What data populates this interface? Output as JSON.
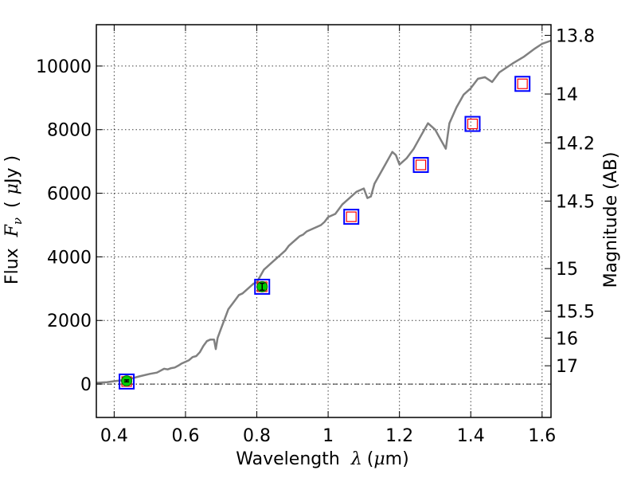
{
  "chart_data": {
    "type": "line",
    "xlabel": "Wavelength",
    "xlabel_symbol": "λ",
    "xlabel_unit_prefix": "(",
    "xlabel_unit_mu": "μ",
    "xlabel_unit_rest": "m)",
    "ylabel": "Flux",
    "ylabel_symbol": "F",
    "ylabel_subscript": "ν",
    "ylabel_unit_open": "(",
    "ylabel_unit_mu": "μ",
    "ylabel_unit_rest": "Jy )",
    "y2label": "Magnitude (AB)",
    "xlim": [
      0.35,
      1.625
    ],
    "ylim": [
      -1050,
      11300
    ],
    "x_ticks": [
      0.4,
      0.6,
      0.8,
      1.0,
      1.2,
      1.4,
      1.6
    ],
    "x_tick_labels": [
      "0.4",
      "0.6",
      "0.8",
      "1",
      "1.2",
      "1.4",
      "1.6"
    ],
    "y_ticks": [
      0,
      2000,
      4000,
      6000,
      8000,
      10000
    ],
    "y_tick_labels": [
      "0",
      "2000",
      "4000",
      "6000",
      "8000",
      "10000"
    ],
    "mag_ticks": [
      {
        "label": "13.8",
        "mag": 13.8
      },
      {
        "label": "14",
        "mag": 14.0
      },
      {
        "label": "14.2",
        "mag": 14.2
      },
      {
        "label": "14.5",
        "mag": 14.5
      },
      {
        "label": "15",
        "mag": 15.0
      },
      {
        "label": "15.5",
        "mag": 15.5
      },
      {
        "label": "16",
        "mag": 16.0
      },
      {
        "label": "17",
        "mag": 17.0
      }
    ],
    "grid": true,
    "series": [
      {
        "name": "spectrum",
        "kind": "line",
        "color": "#808080",
        "x": [
          0.35,
          0.38,
          0.4,
          0.43,
          0.45,
          0.47,
          0.5,
          0.52,
          0.54,
          0.55,
          0.56,
          0.57,
          0.58,
          0.59,
          0.6,
          0.61,
          0.62,
          0.63,
          0.64,
          0.65,
          0.66,
          0.67,
          0.68,
          0.685,
          0.69,
          0.7,
          0.71,
          0.72,
          0.73,
          0.74,
          0.75,
          0.76,
          0.77,
          0.78,
          0.79,
          0.8,
          0.81,
          0.82,
          0.83,
          0.84,
          0.85,
          0.86,
          0.87,
          0.88,
          0.89,
          0.9,
          0.91,
          0.92,
          0.93,
          0.94,
          0.95,
          0.96,
          0.97,
          0.98,
          0.99,
          1.0,
          1.02,
          1.04,
          1.06,
          1.08,
          1.1,
          1.11,
          1.12,
          1.13,
          1.14,
          1.16,
          1.18,
          1.19,
          1.2,
          1.21,
          1.22,
          1.24,
          1.26,
          1.28,
          1.3,
          1.31,
          1.33,
          1.34,
          1.36,
          1.38,
          1.4,
          1.42,
          1.44,
          1.46,
          1.48,
          1.5,
          1.52,
          1.55,
          1.58,
          1.6,
          1.625
        ],
        "y": [
          40,
          60,
          90,
          130,
          180,
          240,
          320,
          360,
          480,
          460,
          500,
          520,
          580,
          650,
          700,
          750,
          850,
          880,
          1000,
          1200,
          1350,
          1400,
          1400,
          1100,
          1450,
          1750,
          2050,
          2350,
          2500,
          2650,
          2800,
          2850,
          2950,
          3050,
          3150,
          3200,
          3400,
          3600,
          3700,
          3800,
          3900,
          4000,
          4100,
          4200,
          4350,
          4450,
          4550,
          4650,
          4700,
          4800,
          4850,
          4900,
          4950,
          5000,
          5100,
          5250,
          5350,
          5650,
          5850,
          6050,
          6150,
          5850,
          5900,
          6300,
          6500,
          6900,
          7300,
          7200,
          6900,
          7000,
          7100,
          7400,
          7800,
          8200,
          8000,
          7800,
          7400,
          8200,
          8700,
          9100,
          9300,
          9600,
          9650,
          9500,
          9800,
          9950,
          10100,
          10300,
          10550,
          10700,
          10800
        ]
      },
      {
        "name": "photometry-open-squares",
        "kind": "marker",
        "x": [
          0.435,
          0.815,
          1.065,
          1.26,
          1.405,
          1.545
        ],
        "y": [
          80,
          3060,
          5260,
          6890,
          8180,
          9440
        ],
        "edge_colors": [
          "#0000ff",
          "#ff0000"
        ]
      },
      {
        "name": "photometry-green-points",
        "kind": "marker",
        "color": "#00cc00",
        "x": [
          0.435,
          0.815
        ],
        "y": [
          100,
          3060
        ],
        "yerr": [
          30,
          110
        ]
      }
    ]
  }
}
